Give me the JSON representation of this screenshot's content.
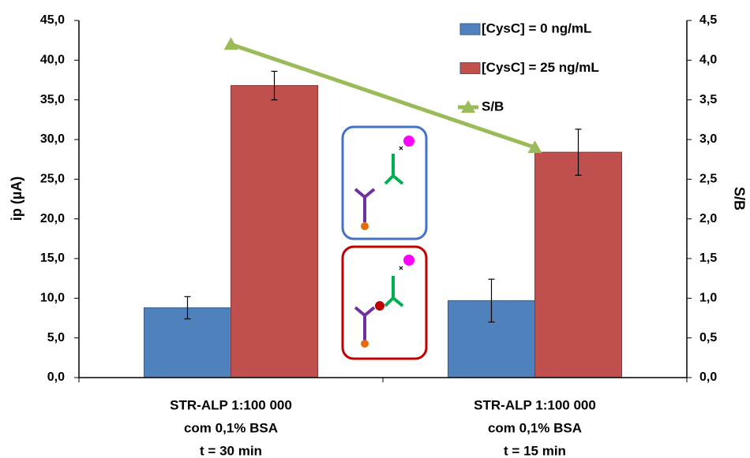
{
  "chart_data": {
    "type": "bar",
    "y_label": "ip (µA)",
    "y2_label": "S/B",
    "categories": [
      [
        "STR-ALP 1:100 000",
        "com 0,1% BSA",
        "t = 30 min"
      ],
      [
        "STR-ALP 1:100 000",
        "com 0,1% BSA",
        "t = 15 min"
      ]
    ],
    "series": [
      {
        "name": "[CysC] = 0 ng/mL",
        "color": "#4f81bd",
        "type": "bar",
        "values": [
          8.8,
          9.7
        ],
        "errors": [
          1.4,
          2.7
        ]
      },
      {
        "name": "[CysC] = 25 ng/mL",
        "color": "#c0504d",
        "type": "bar",
        "values": [
          36.8,
          28.4
        ],
        "errors": [
          1.8,
          2.9
        ]
      },
      {
        "name": "S/B",
        "color": "#9bbb59",
        "type": "line",
        "axis": "y2",
        "values": [
          4.2,
          2.9
        ]
      }
    ],
    "ylim": [
      0,
      45
    ],
    "yticks": [
      {
        "value": 0,
        "label": "0,0"
      },
      {
        "value": 5,
        "label": "5,0"
      },
      {
        "value": 10,
        "label": "10,0"
      },
      {
        "value": 15,
        "label": "15,0"
      },
      {
        "value": 20,
        "label": "20,0"
      },
      {
        "value": 25,
        "label": "25,0"
      },
      {
        "value": 30,
        "label": "30,0"
      },
      {
        "value": 35,
        "label": "35,0"
      },
      {
        "value": 40,
        "label": "40,0"
      },
      {
        "value": 45,
        "label": "45,0"
      }
    ],
    "y2lim": [
      0,
      4.5
    ],
    "y2ticks": [
      {
        "value": 0,
        "label": "0,0"
      },
      {
        "value": 0.5,
        "label": "0,5"
      },
      {
        "value": 1,
        "label": "1,0"
      },
      {
        "value": 1.5,
        "label": "1,5"
      },
      {
        "value": 2,
        "label": "2,0"
      },
      {
        "value": 2.5,
        "label": "2,5"
      },
      {
        "value": 3,
        "label": "3,0"
      },
      {
        "value": 3.5,
        "label": "3,5"
      },
      {
        "value": 4,
        "label": "4,0"
      },
      {
        "value": 4.5,
        "label": "4,5"
      }
    ],
    "legend": "top-right"
  }
}
